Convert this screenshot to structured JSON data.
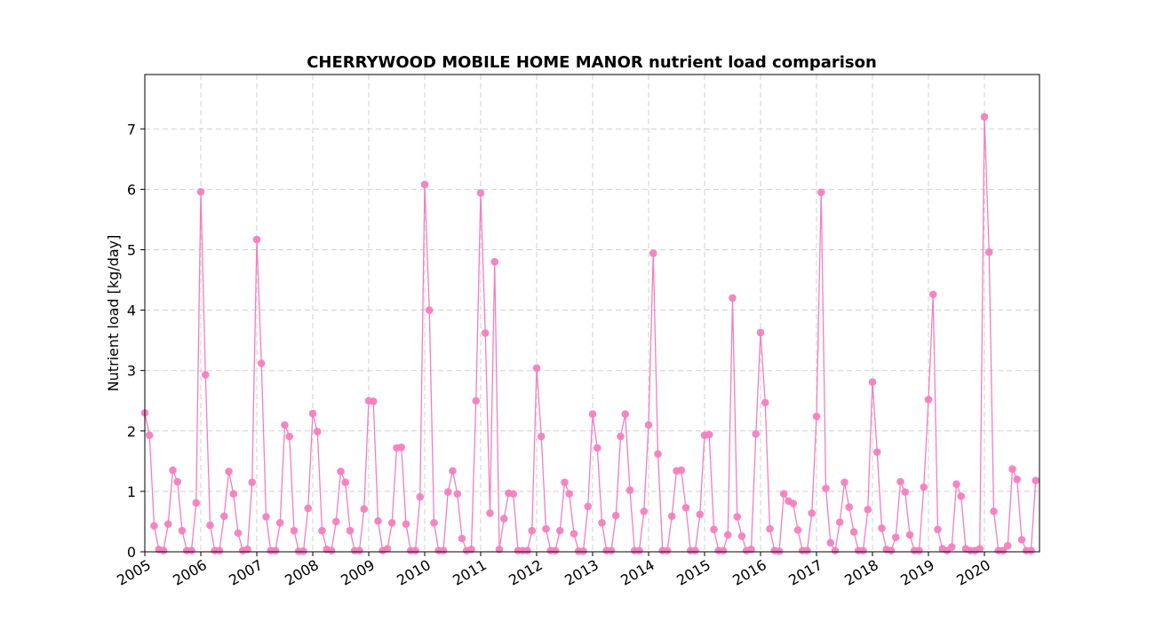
{
  "chart_data": {
    "type": "line",
    "title": "CHERRYWOOD MOBILE HOME MANOR nutrient load comparison",
    "xlabel": "",
    "ylabel": "Nutrient load [kg/day]",
    "x_ticks": [
      "2005",
      "2006",
      "2007",
      "2008",
      "2009",
      "2010",
      "2011",
      "2012",
      "2013",
      "2014",
      "2015",
      "2016",
      "2017",
      "2018",
      "2019",
      "2020"
    ],
    "y_ticks": [
      "0",
      "1",
      "2",
      "3",
      "4",
      "5",
      "6",
      "7"
    ],
    "xlim": [
      "2005-01",
      "2020-12"
    ],
    "ylim": [
      0,
      7.9
    ],
    "grid": true,
    "color": "#f47fbf",
    "series": [
      {
        "values": [
          2.3,
          1.93,
          0.43,
          0.04,
          0.02,
          0.46,
          1.35,
          1.16,
          0.35,
          0.02,
          0.02,
          0.81,
          5.96,
          2.93,
          0.44,
          0.02,
          0.02,
          0.59,
          1.33,
          0.96,
          0.31,
          0.02,
          0.04,
          1.15,
          5.17,
          3.12,
          0.58,
          0.02,
          0.02,
          0.48,
          2.1,
          1.91,
          0.35,
          0.01,
          0.01,
          0.72,
          2.29,
          1.99,
          0.35,
          0.04,
          0.02,
          0.5,
          1.33,
          1.15,
          0.35,
          0.02,
          0.02,
          0.71,
          2.5,
          2.49,
          0.51,
          0.02,
          0.05,
          0.48,
          1.72,
          1.73,
          0.46,
          0.02,
          0.02,
          0.91,
          6.08,
          4.0,
          0.48,
          0.02,
          0.02,
          0.99,
          1.34,
          0.96,
          0.22,
          0.02,
          0.04,
          2.5,
          5.94,
          3.62,
          0.64,
          4.8,
          0.04,
          0.55,
          0.97,
          0.96,
          0.02,
          0.02,
          0.02,
          0.35,
          3.04,
          1.91,
          0.38,
          0.02,
          0.02,
          0.35,
          1.15,
          0.96,
          0.3,
          0.01,
          0.01,
          0.75,
          2.28,
          1.72,
          0.48,
          0.02,
          0.02,
          0.6,
          1.91,
          2.28,
          1.02,
          0.02,
          0.02,
          0.67,
          2.1,
          4.94,
          1.62,
          0.02,
          0.02,
          0.59,
          1.34,
          1.35,
          0.73,
          0.02,
          0.02,
          0.62,
          1.93,
          1.94,
          0.37,
          0.02,
          0.02,
          0.28,
          4.2,
          0.58,
          0.26,
          0.02,
          0.04,
          1.95,
          3.63,
          2.47,
          0.38,
          0.02,
          0.01,
          0.96,
          0.84,
          0.8,
          0.36,
          0.02,
          0.02,
          0.64,
          2.24,
          5.95,
          1.05,
          0.15,
          0.02,
          0.49,
          1.15,
          0.74,
          0.33,
          0.02,
          0.02,
          0.7,
          2.81,
          1.65,
          0.39,
          0.04,
          0.02,
          0.24,
          1.16,
          0.99,
          0.28,
          0.02,
          0.02,
          1.07,
          2.52,
          4.26,
          0.37,
          0.05,
          0.02,
          0.08,
          1.12,
          0.92,
          0.05,
          0.02,
          0.02,
          0.05,
          7.2,
          4.96,
          0.67,
          0.02,
          0.02,
          0.1,
          1.37,
          1.2,
          0.2,
          0.02,
          0.02,
          1.18
        ]
      }
    ]
  }
}
